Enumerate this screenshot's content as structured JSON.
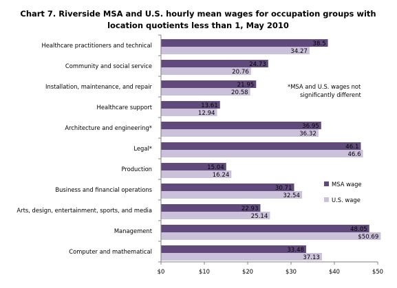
{
  "chart_data": {
    "type": "bar",
    "orientation": "horizontal",
    "title_lines": [
      "Chart 7. Riverside  MSA and U.S. hourly mean wages for occupation groups with",
      "location quotients less than 1, May 2010"
    ],
    "categories": [
      "Healthcare practitioners and technical",
      "Community and social service",
      "Installation, maintenance, and repair",
      "Healthcare support",
      "Architecture and engineering*",
      "Legal*",
      "Production",
      "Business and financial operations",
      "Arts, design, entertainment, sports, and media",
      "Management",
      "Computer and mathematical"
    ],
    "series": [
      {
        "name": "MSA wage",
        "color": "#604a7b",
        "values": [
          38.5,
          24.73,
          21.95,
          13.61,
          36.95,
          46.1,
          15.04,
          30.71,
          22.93,
          48.05,
          33.48
        ],
        "labels": [
          "38.5",
          "24.73",
          "21.95",
          "13.61",
          "36.95",
          "46.1",
          "15.04",
          "30.71",
          "22.93",
          "48.05",
          "33.48"
        ]
      },
      {
        "name": "U.S. wage",
        "color": "#ccc1da",
        "values": [
          34.27,
          20.76,
          20.58,
          12.94,
          36.32,
          46.6,
          16.24,
          32.54,
          25.14,
          50.69,
          37.13
        ],
        "labels": [
          "34.27",
          "20.76",
          "20.58",
          "12.94",
          "36.32",
          "46.6",
          "16.24",
          "32.54",
          "25.14",
          "$50.69",
          "37.13"
        ]
      }
    ],
    "xlim": [
      0,
      50
    ],
    "xticks": [
      0,
      10,
      20,
      30,
      40,
      50
    ],
    "xtick_labels": [
      "$0",
      "$10",
      "$20",
      "$30",
      "$40",
      "$50"
    ],
    "xlabel": "",
    "ylabel": "",
    "grid": false,
    "legend_position": "right",
    "annotation_lines": [
      "*MSA and U.S. wages not",
      "significantly different"
    ]
  }
}
